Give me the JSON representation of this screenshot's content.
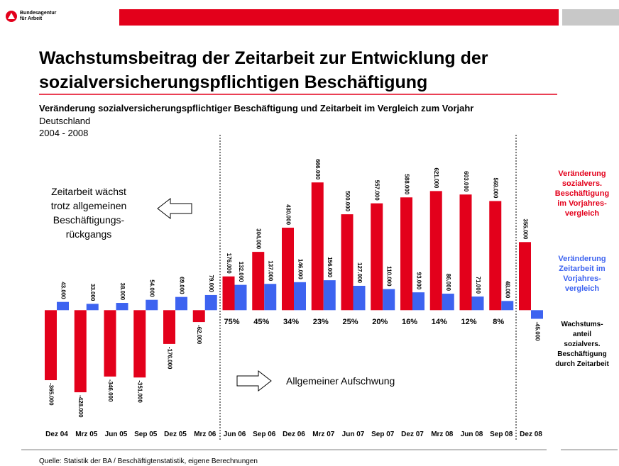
{
  "header": {
    "logo_lines": [
      "Bundesagentur",
      "für Arbeit"
    ]
  },
  "chart_data": {
    "type": "bar",
    "title_lines": [
      "Wachstumsbeitrag der Zeitarbeit zur Entwicklung der",
      "sozialversicherungspflichtigen Beschäftigung"
    ],
    "subtitle": "Veränderung sozialversicherungspflichtiger Beschäftigung und Zeitarbeit im Vergleich zum Vorjahr",
    "region": "Deutschland",
    "period": "2004 - 2008",
    "categories": [
      "Dez 04",
      "Mrz 05",
      "Jun 05",
      "Sep 05",
      "Dez 05",
      "Mrz 06",
      "Jun 06",
      "Sep 06",
      "Dez 06",
      "Mrz 07",
      "Jun 07",
      "Sep 07",
      "Dez 07",
      "Mrz 08",
      "Jun 08",
      "Sep 08",
      "Dez 08"
    ],
    "ylim": [
      -450000,
      700000
    ],
    "series": [
      {
        "name_lines": [
          "Veränderung",
          "sozialvers.",
          "Beschäftigung",
          "im Vorjahres-",
          "vergleich"
        ],
        "color": "#e3001b",
        "values": [
          -365000,
          -428000,
          -346000,
          -351000,
          -176000,
          -62000,
          176000,
          304000,
          430000,
          666000,
          500000,
          557000,
          588000,
          621000,
          603000,
          569000,
          355000
        ],
        "value_labels": [
          "-365.000",
          "-428.000",
          "-346.000",
          "-351.000",
          "-176.000",
          "-62.000",
          "176.000",
          "304.000",
          "430.000",
          "666.000",
          "500.000",
          "557.000",
          "588.000",
          "621.000",
          "603.000",
          "569.000",
          "355.000"
        ]
      },
      {
        "name_lines": [
          "Veränderung",
          "Zeitarbeit im",
          "Vorjahres-",
          "vergleich"
        ],
        "color": "#3d63f0",
        "values": [
          43000,
          33000,
          38000,
          54000,
          69000,
          79000,
          132000,
          137000,
          146000,
          156000,
          127000,
          110000,
          93000,
          86000,
          71000,
          48000,
          -45000
        ],
        "value_labels": [
          "43.000",
          "33.000",
          "38.000",
          "54.000",
          "69.000",
          "79.000",
          "132.000",
          "137.000",
          "146.000",
          "156.000",
          "127.000",
          "110.000",
          "93.000",
          "86.000",
          "71.000",
          "48.000",
          "-45.000"
        ]
      }
    ],
    "share_title_lines": [
      "Wachstums-",
      "anteil",
      "sozialvers.",
      "Beschäftigung",
      "durch Zeitarbeit"
    ],
    "share_labels": [
      null,
      null,
      null,
      null,
      null,
      null,
      "75%",
      "45%",
      "34%",
      "23%",
      "25%",
      "20%",
      "16%",
      "14%",
      "12%",
      "8%",
      null
    ],
    "annotation_left_lines": [
      "Zeitarbeit wächst",
      "trotz allgemeinen",
      "Beschäftigungs-",
      "rückgangs"
    ],
    "annotation_right": "Allgemeiner Aufschwung",
    "source": "Quelle: Statistik der BA / Beschäftigtenstatistik, eigene Berechnungen"
  }
}
